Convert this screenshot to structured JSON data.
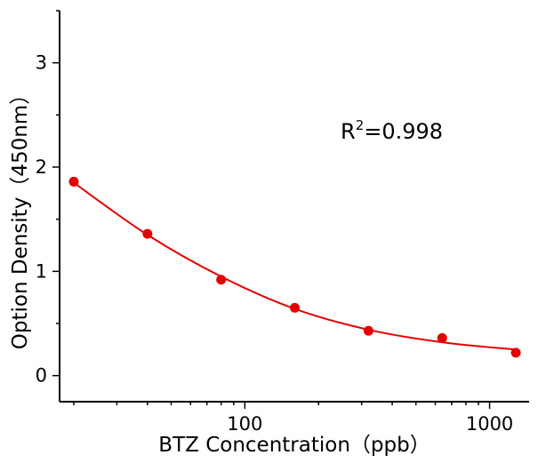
{
  "chart_data": {
    "type": "scatter",
    "xlabel": "BTZ Concentration（ppb）",
    "ylabel": "Option Density（450nm）",
    "x_scale": "log",
    "xlim": [
      17.5,
      1450
    ],
    "ylim": [
      -0.25,
      3.5
    ],
    "x_ticks": [
      100,
      1000
    ],
    "x_tick_labels": [
      "100",
      "1000"
    ],
    "y_ticks": [
      0,
      1,
      2,
      3
    ],
    "y_tick_labels": [
      "0",
      "1",
      "2",
      "3"
    ],
    "grid": false,
    "annotation": {
      "prefix": "R",
      "superscript": "2",
      "suffix": "=0.998"
    },
    "series": [
      {
        "color": "#e50000",
        "points": [
          {
            "x": 20,
            "y": 1.86
          },
          {
            "x": 40,
            "y": 1.36
          },
          {
            "x": 80,
            "y": 0.92
          },
          {
            "x": 160,
            "y": 0.65
          },
          {
            "x": 320,
            "y": 0.43
          },
          {
            "x": 640,
            "y": 0.36
          },
          {
            "x": 1280,
            "y": 0.22
          }
        ],
        "fit_curve": {
          "type": "smooth",
          "points": [
            {
              "x": 20,
              "y": 1.85
            },
            {
              "x": 40,
              "y": 1.35
            },
            {
              "x": 80,
              "y": 0.95
            },
            {
              "x": 160,
              "y": 0.64
            },
            {
              "x": 320,
              "y": 0.44
            },
            {
              "x": 640,
              "y": 0.32
            },
            {
              "x": 1280,
              "y": 0.25
            }
          ]
        }
      }
    ]
  }
}
